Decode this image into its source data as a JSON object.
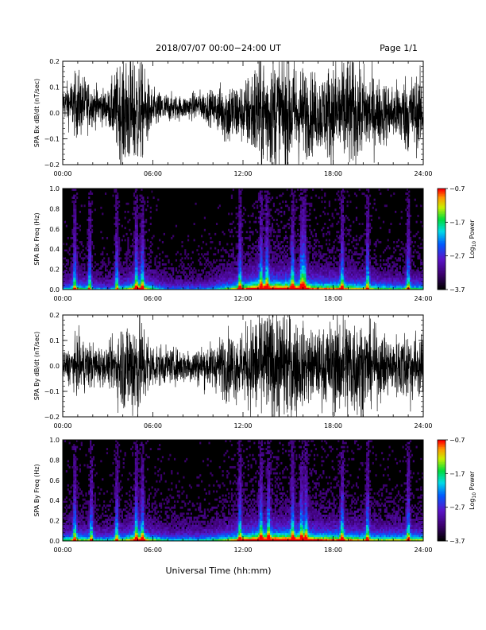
{
  "header": {
    "title": "2018/07/07  00:00−24:00 UT",
    "page": "Page 1/1"
  },
  "footer": {
    "xlabel": "Universal Time (hh:mm)"
  },
  "chart_data": [
    {
      "type": "line",
      "ylabel": "SPA Bx dB/dt (nT/sec)",
      "xlim": [
        "00:00",
        "24:00"
      ],
      "ylim": [
        -0.2,
        0.2
      ],
      "xticks": [
        "00:00",
        "06:00",
        "12:00",
        "18:00",
        "24:00"
      ],
      "yticks": [
        "−0.2",
        "−0.1",
        "0.0",
        "0.1",
        "0.2"
      ],
      "series": [
        {
          "x_hours": [
            0,
            1,
            2,
            3,
            4,
            5,
            6,
            7,
            8,
            9,
            10,
            11,
            12,
            13,
            14,
            15,
            16,
            17,
            18,
            19,
            20,
            21,
            22,
            23,
            24
          ],
          "envelope_amplitude": [
            0.05,
            0.12,
            0.07,
            0.06,
            0.2,
            0.2,
            0.07,
            0.05,
            0.04,
            0.05,
            0.06,
            0.12,
            0.1,
            0.2,
            0.2,
            0.2,
            0.16,
            0.13,
            0.18,
            0.2,
            0.16,
            0.12,
            0.1,
            0.14,
            0.12
          ],
          "offset": [
            0.04,
            0.03,
            0.03,
            0.02,
            0.0,
            0.0,
            0.01,
            0.02,
            0.02,
            0.03,
            0.02,
            0.0,
            0.0,
            0.0,
            0.0,
            0.0,
            0.0,
            0.0,
            0.0,
            0.0,
            0.0,
            0.0,
            0.0,
            0.0,
            0.0
          ]
        }
      ]
    },
    {
      "type": "heatmap",
      "ylabel": "SPA Bx Freq (Hz)",
      "xlim": [
        "00:00",
        "24:00"
      ],
      "ylim": [
        0,
        1.0
      ],
      "xticks": [
        "00:00",
        "06:00",
        "12:00",
        "18:00",
        "24:00"
      ],
      "yticks": [
        "0.0",
        "0.2",
        "0.4",
        "0.6",
        "0.8",
        "1.0"
      ],
      "colorbar": {
        "label": "Log10 Power",
        "label_base": "Log",
        "label_sub": "10",
        "label_rest": " Power",
        "range": [
          -3.7,
          -0.7
        ],
        "ticks": [
          "−0.7",
          "−1.7",
          "−2.7",
          "−3.7"
        ]
      },
      "activity_hours": [
        0.8,
        1.8,
        3.6,
        4.9,
        5.3,
        11.8,
        13.2,
        13.6,
        15.3,
        15.9,
        16.1,
        18.6,
        20.3,
        23.0
      ],
      "low_freq_intensity": [
        0.35,
        0.5,
        0.35,
        0.3,
        0.45,
        0.7,
        0.45,
        0.3,
        0.3,
        0.3,
        0.35,
        0.5,
        0.65,
        0.85,
        0.85,
        0.8,
        0.75,
        0.65,
        0.65,
        0.6,
        0.55,
        0.5,
        0.45,
        0.45,
        0.45
      ]
    },
    {
      "type": "line",
      "ylabel": "SPA By dB/dt (nT/sec)",
      "xlim": [
        "00:00",
        "24:00"
      ],
      "ylim": [
        -0.2,
        0.2
      ],
      "xticks": [
        "00:00",
        "06:00",
        "12:00",
        "18:00",
        "24:00"
      ],
      "yticks": [
        "−0.2",
        "−0.1",
        "0.0",
        "0.1",
        "0.2"
      ],
      "series": [
        {
          "x_hours": [
            0,
            1,
            2,
            3,
            4,
            5,
            6,
            7,
            8,
            9,
            10,
            11,
            12,
            13,
            14,
            15,
            16,
            17,
            18,
            19,
            20,
            21,
            22,
            23,
            24
          ],
          "envelope_amplitude": [
            0.04,
            0.1,
            0.08,
            0.06,
            0.16,
            0.2,
            0.08,
            0.06,
            0.06,
            0.07,
            0.08,
            0.12,
            0.12,
            0.2,
            0.19,
            0.2,
            0.14,
            0.12,
            0.16,
            0.2,
            0.16,
            0.12,
            0.1,
            0.14,
            0.1
          ],
          "offset": [
            0,
            0,
            0,
            0,
            0,
            0,
            0,
            0,
            0,
            0,
            0,
            0,
            0,
            0,
            0,
            0,
            0,
            0,
            0,
            0,
            0,
            0,
            0,
            0,
            0
          ]
        }
      ]
    },
    {
      "type": "heatmap",
      "ylabel": "SPA By Freq (Hz)",
      "xlim": [
        "00:00",
        "24:00"
      ],
      "ylim": [
        0,
        1.0
      ],
      "xticks": [
        "00:00",
        "06:00",
        "12:00",
        "18:00",
        "24:00"
      ],
      "yticks": [
        "0.0",
        "0.2",
        "0.4",
        "0.6",
        "0.8",
        "1.0"
      ],
      "colorbar": {
        "label": "Log10 Power",
        "label_base": "Log",
        "label_sub": "10",
        "label_rest": " Power",
        "range": [
          -3.7,
          -0.7
        ],
        "ticks": [
          "−0.7",
          "−1.7",
          "−2.7",
          "−3.7"
        ]
      },
      "activity_hours": [
        0.8,
        1.9,
        3.6,
        4.9,
        5.3,
        11.8,
        13.2,
        13.7,
        15.3,
        15.9,
        16.2,
        18.6,
        20.3,
        23.0
      ],
      "low_freq_intensity": [
        0.45,
        0.55,
        0.45,
        0.4,
        0.5,
        0.75,
        0.5,
        0.4,
        0.4,
        0.4,
        0.45,
        0.55,
        0.7,
        0.85,
        0.85,
        0.85,
        0.8,
        0.7,
        0.7,
        0.65,
        0.6,
        0.55,
        0.55,
        0.55,
        0.55
      ]
    }
  ]
}
